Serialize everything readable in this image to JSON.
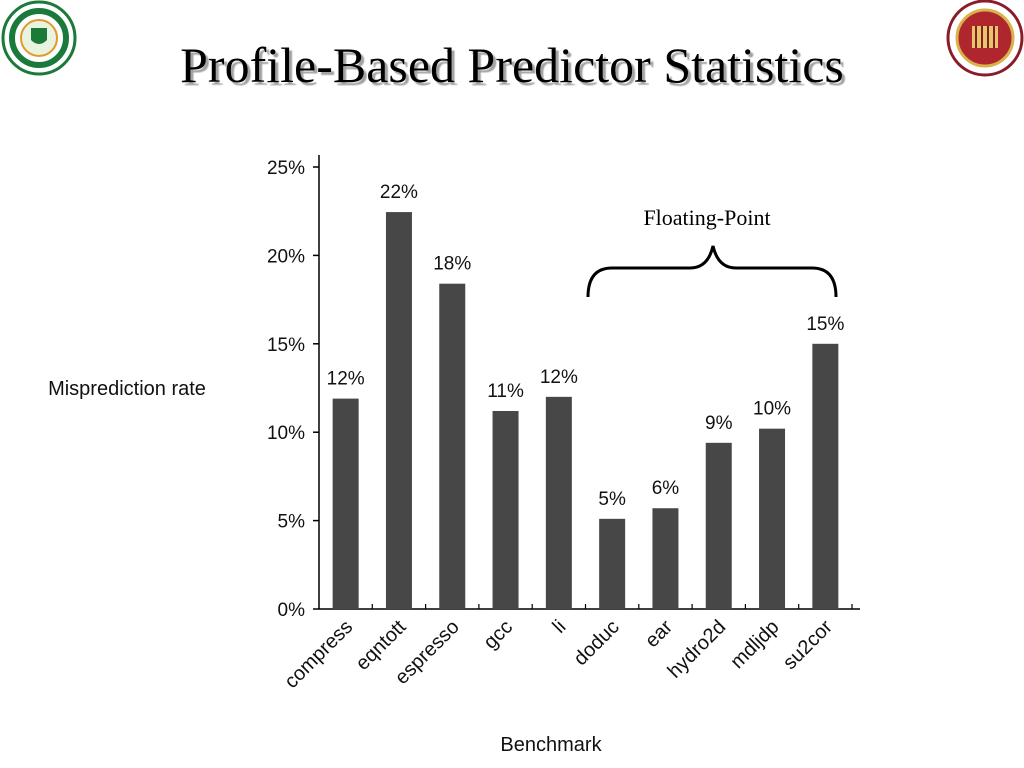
{
  "title": "Profile-Based Predictor Statistics",
  "chart_data": {
    "type": "bar",
    "y_label": "Misprediction rate",
    "x_label": "Benchmark",
    "annotation": "Floating-Point",
    "categories": [
      "compress",
      "eqntott",
      "espresso",
      "gcc",
      "li",
      "doduc",
      "ear",
      "hydro2d",
      "mdljdp",
      "su2cor"
    ],
    "values": [
      11.9,
      22.45,
      18.4,
      11.2,
      12.0,
      5.1,
      5.7,
      9.4,
      10.2,
      15.0
    ],
    "value_labels": [
      "12%",
      "22%",
      "18%",
      "11%",
      "12%",
      "5%",
      "6%",
      "9%",
      "10%",
      "15%"
    ],
    "color": "#474747",
    "ylim": [
      0,
      25
    ],
    "yticks": [
      {
        "value": 0,
        "label": "0%"
      },
      {
        "value": 5,
        "label": "5%"
      },
      {
        "value": 10,
        "label": "10%"
      },
      {
        "value": 15,
        "label": "15%"
      },
      {
        "value": 20,
        "label": "20%"
      },
      {
        "value": 25,
        "label": "25%"
      }
    ],
    "grid": false
  }
}
